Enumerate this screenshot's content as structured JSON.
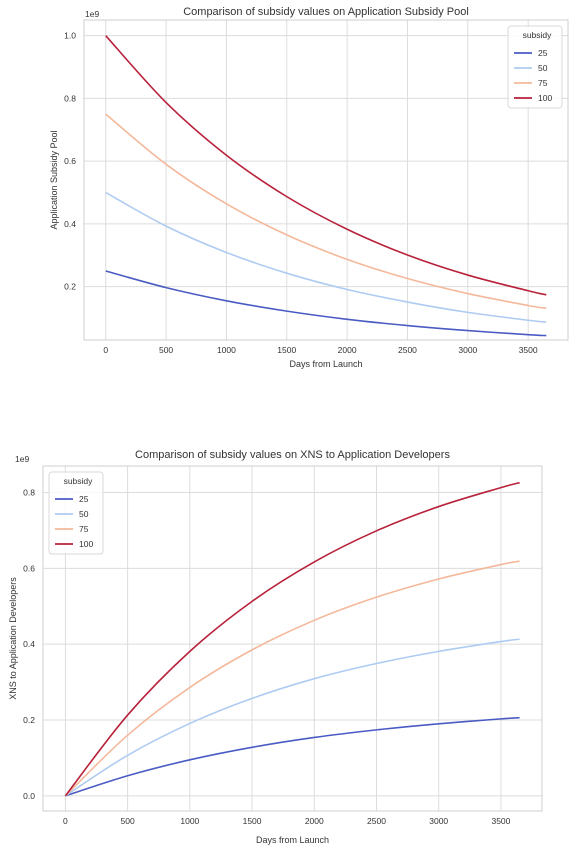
{
  "chart_data": [
    {
      "type": "line",
      "title": "Comparison of subsidy values on Application Subsidy Pool",
      "xlabel": "Days from Launch",
      "ylabel": "Application Subsidy Pool",
      "y_multiplier": "1e9",
      "xlim": [
        -180,
        3830
      ],
      "ylim": [
        0.03,
        1.05
      ],
      "xticks": [
        0,
        500,
        1000,
        1500,
        2000,
        2500,
        3000,
        3500
      ],
      "yticks": [
        0.2,
        0.4,
        0.6,
        0.8,
        1.0
      ],
      "ytick_labels": [
        "0.2",
        "0.4",
        "0.6",
        "0.8",
        "1.0"
      ],
      "grid": true,
      "legend": {
        "title": "subsidy",
        "placement": "top-right"
      },
      "x": [
        0,
        500,
        1000,
        1500,
        2000,
        2500,
        3000,
        3500,
        3650
      ],
      "series": [
        {
          "name": "25",
          "color": "#4a5bc4",
          "values": [
            0.25,
            0.197,
            0.155,
            0.122,
            0.096,
            0.076,
            0.06,
            0.047,
            0.044
          ]
        },
        {
          "name": "50",
          "color": "#aecbf2",
          "values": [
            0.5,
            0.393,
            0.309,
            0.243,
            0.191,
            0.151,
            0.118,
            0.093,
            0.087
          ]
        },
        {
          "name": "75",
          "color": "#f4b89a",
          "values": [
            0.75,
            0.59,
            0.464,
            0.365,
            0.287,
            0.226,
            0.178,
            0.14,
            0.131
          ]
        },
        {
          "name": "100",
          "color": "#b8213a",
          "values": [
            1.0,
            0.787,
            0.619,
            0.487,
            0.383,
            0.301,
            0.237,
            0.187,
            0.174
          ]
        }
      ]
    },
    {
      "type": "line",
      "title": "Comparison of subsidy values on XNS to Application Developers",
      "xlabel": "Days from Launch",
      "ylabel": "XNS to Application Developers",
      "y_multiplier": "1e9",
      "xlim": [
        -180,
        3830
      ],
      "ylim": [
        -0.04,
        0.87
      ],
      "xticks": [
        0,
        500,
        1000,
        1500,
        2000,
        2500,
        3000,
        3500
      ],
      "yticks": [
        0.0,
        0.2,
        0.4,
        0.6,
        0.8
      ],
      "ytick_labels": [
        "0.0",
        "0.2",
        "0.4",
        "0.6",
        "0.8"
      ],
      "grid": true,
      "legend": {
        "title": "subsidy",
        "placement": "top-left"
      },
      "x": [
        0,
        500,
        1000,
        1500,
        2000,
        2500,
        3000,
        3500,
        3650
      ],
      "series": [
        {
          "name": "25",
          "color": "#4a5bc4",
          "values": [
            0.0,
            0.053,
            0.095,
            0.128,
            0.154,
            0.174,
            0.19,
            0.203,
            0.206
          ]
        },
        {
          "name": "50",
          "color": "#aecbf2",
          "values": [
            0.0,
            0.107,
            0.191,
            0.257,
            0.309,
            0.349,
            0.381,
            0.407,
            0.413
          ]
        },
        {
          "name": "75",
          "color": "#f4b89a",
          "values": [
            0.0,
            0.16,
            0.286,
            0.385,
            0.463,
            0.524,
            0.572,
            0.61,
            0.619
          ]
        },
        {
          "name": "100",
          "color": "#b8213a",
          "values": [
            0.0,
            0.213,
            0.381,
            0.513,
            0.617,
            0.699,
            0.763,
            0.813,
            0.826
          ]
        }
      ]
    }
  ]
}
